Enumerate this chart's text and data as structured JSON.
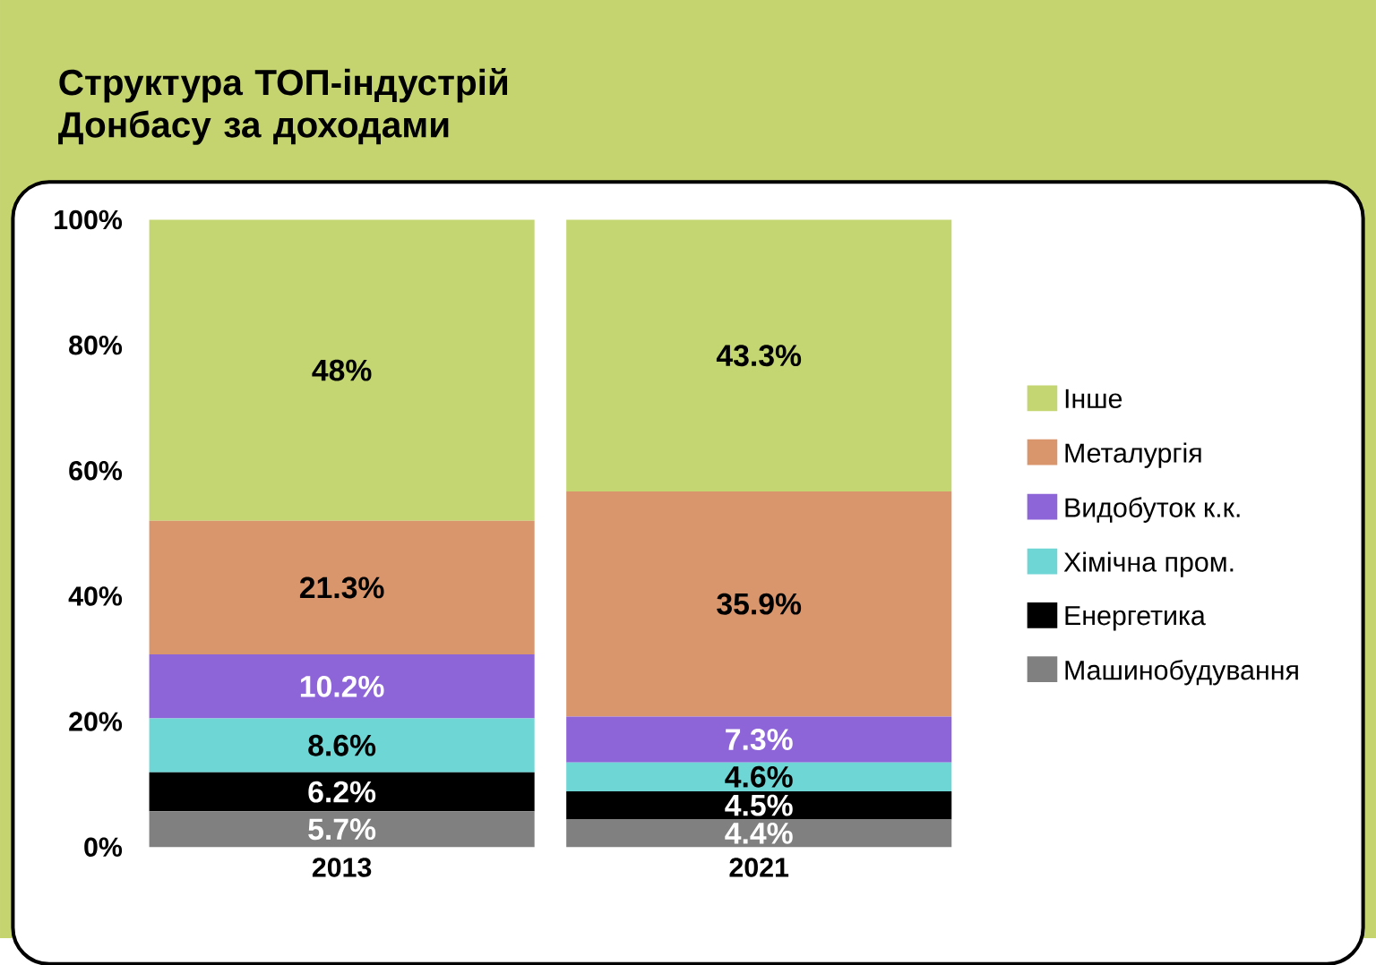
{
  "chart_data": {
    "type": "bar",
    "title": "Структура ТОП-індустрій Донбасу за доходами",
    "stacked": true,
    "categories": [
      "2013",
      "2021"
    ],
    "series": [
      {
        "name": "Машинобудування",
        "color": "#808080",
        "values": [
          5.7,
          4.4
        ],
        "value_labels": [
          "5.7%",
          "4.4%"
        ]
      },
      {
        "name": "Енергетика",
        "color": "#000000",
        "values": [
          6.2,
          4.5
        ],
        "value_labels": [
          "6.2%",
          "4.5%"
        ]
      },
      {
        "name": "Хімічна пром.",
        "color": "#6fd6d6",
        "values": [
          8.6,
          4.6
        ],
        "value_labels": [
          "8.6%",
          "4.6%"
        ]
      },
      {
        "name": "Видобуток к.к.",
        "color": "#8e65d8",
        "values": [
          10.2,
          7.3
        ],
        "value_labels": [
          "10.2%",
          "7.3%"
        ]
      },
      {
        "name": "Металургія",
        "color": "#d9956c",
        "values": [
          21.3,
          35.9
        ],
        "value_labels": [
          "21.3%",
          "35.9%"
        ]
      },
      {
        "name": "Інше",
        "color": "#c3d672",
        "values": [
          48,
          43.3
        ],
        "value_labels": [
          "48%",
          "43.3%"
        ]
      }
    ],
    "ylim": [
      0,
      100
    ],
    "yticks": [
      {
        "value": 0,
        "label": "0%"
      },
      {
        "value": 20,
        "label": "20%"
      },
      {
        "value": 40,
        "label": "40%"
      },
      {
        "value": 60,
        "label": "60%"
      },
      {
        "value": 80,
        "label": "80%"
      },
      {
        "value": 100,
        "label": "100%"
      }
    ],
    "grid": false,
    "legend": "right"
  }
}
